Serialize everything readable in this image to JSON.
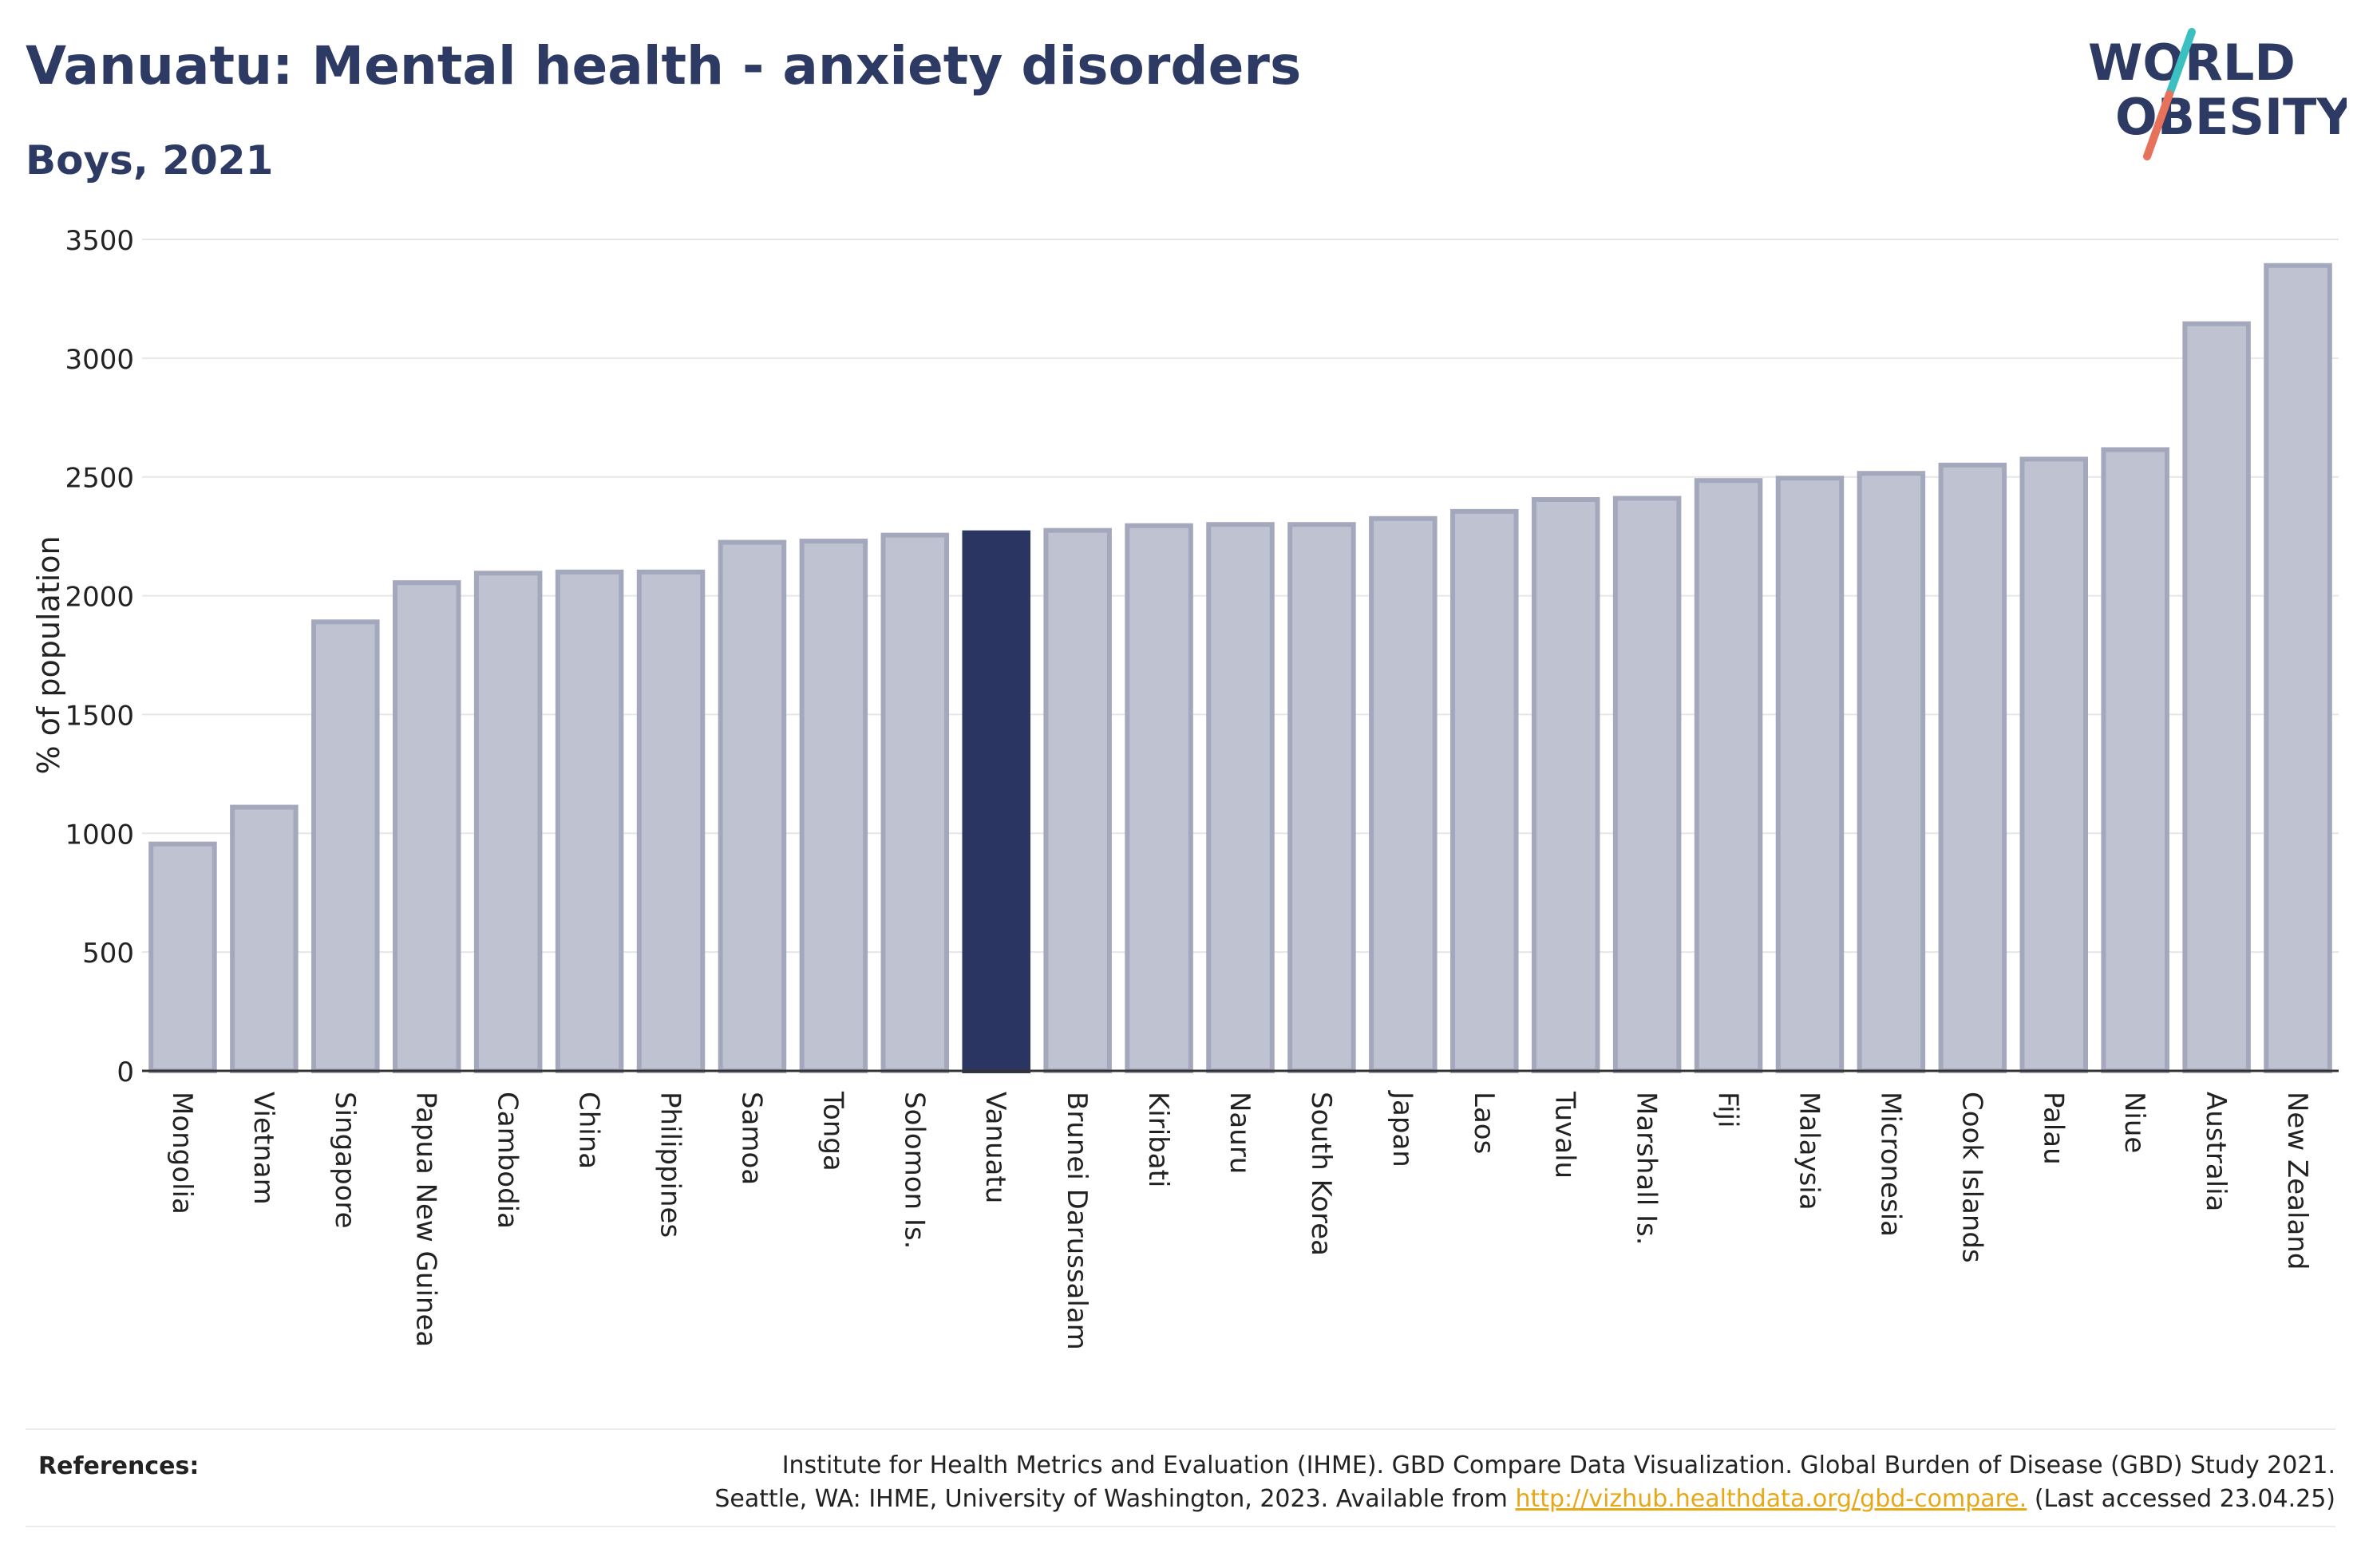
{
  "header": {
    "title": "Vanuatu: Mental health - anxiety disorders",
    "subtitle": "Boys, 2021"
  },
  "logo": {
    "line1": "WORLD",
    "line2": "OBESITY",
    "slash_colors": [
      "#3bbfc1",
      "#e8715b"
    ]
  },
  "chart_data": {
    "type": "bar",
    "title": "Vanuatu: Mental health - anxiety disorders",
    "subtitle": "Boys, 2021",
    "ylabel": "% of population",
    "xlabel": "",
    "ylim": [
      0,
      3500
    ],
    "yticks": [
      0,
      500,
      1000,
      1500,
      2000,
      2500,
      3000,
      3500
    ],
    "grid": true,
    "highlight": "Vanuatu",
    "colors": {
      "default": "#bfc3d1",
      "default_stroke": "#a3a8bc",
      "highlight": "#2b3561"
    },
    "categories": [
      "Mongolia",
      "Vietnam",
      "Singapore",
      "Papua New Guinea",
      "Cambodia",
      "China",
      "Philippines",
      "Samoa",
      "Tonga",
      "Solomon Is.",
      "Vanuatu",
      "Brunei Darussalam",
      "Kiribati",
      "Nauru",
      "South Korea",
      "Japan",
      "Laos",
      "Tuvalu",
      "Marshall Is.",
      "Fiji",
      "Malaysia",
      "Micronesia",
      "Cook Islands",
      "Palau",
      "Niue",
      "Australia",
      "New Zealand"
    ],
    "values": [
      955,
      1110,
      1890,
      2055,
      2095,
      2100,
      2100,
      2225,
      2230,
      2255,
      2265,
      2275,
      2295,
      2300,
      2300,
      2325,
      2355,
      2405,
      2410,
      2485,
      2495,
      2515,
      2550,
      2575,
      2615,
      3145,
      3390
    ]
  },
  "references": {
    "label": "References:",
    "line1": "Institute for Health Metrics and Evaluation (IHME). GBD Compare Data Visualization. Global Burden of Disease (GBD) Study 2021.",
    "line2_prefix": "Seattle, WA: IHME, University of Washington, 2023. Available from ",
    "link": "http://vizhub.healthdata.org/gbd-compare.",
    "line2_suffix": " (Last accessed 23.04.25)"
  }
}
